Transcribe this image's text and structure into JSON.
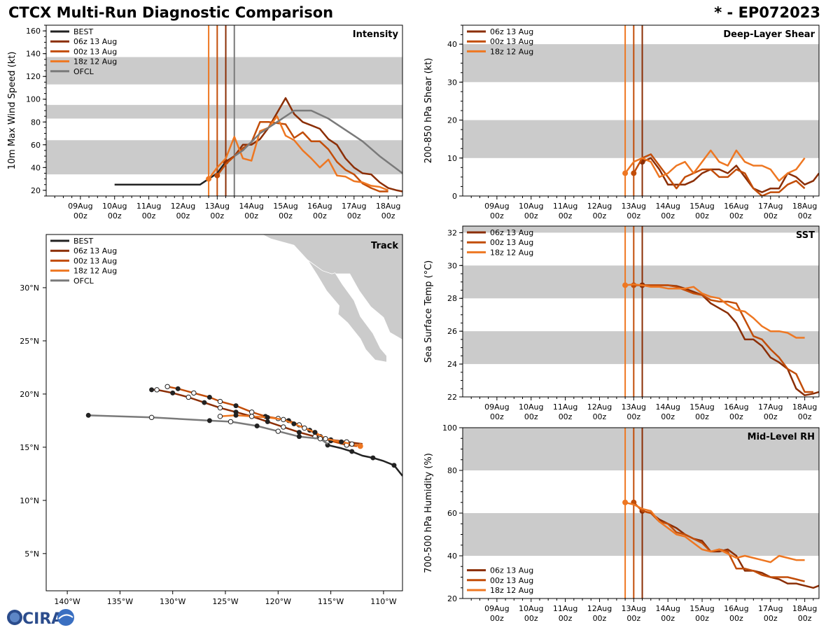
{
  "header": {
    "title": "CTCX Multi-Run Diagnostic Comparison",
    "storm_id": "* - EP072023"
  },
  "colors": {
    "best": "#222222",
    "run06z": "#8B2E05",
    "run00z": "#C24D09",
    "run18z": "#EE7722",
    "ofcl": "#7a7a7a",
    "band": "#cbcbcb",
    "land": "#cbcbcb"
  },
  "time_ticks": {
    "days": [
      "09Aug",
      "10Aug",
      "11Aug",
      "12Aug",
      "13Aug",
      "14Aug",
      "15Aug",
      "16Aug",
      "17Aug",
      "18Aug"
    ],
    "hour": "00z"
  },
  "legend_runs": [
    "06z 13 Aug",
    "00z 13 Aug",
    "18z 12 Aug"
  ],
  "logo": {
    "text": "CIRA"
  },
  "chart_data": [
    {
      "id": "intensity",
      "type": "line",
      "title": "Intensity",
      "ylabel": "10m Max Wind Speed (kt)",
      "xlabel": "",
      "xlim_hours": [
        -24,
        226
      ],
      "ylim": [
        15,
        165
      ],
      "yticks": [
        20,
        40,
        60,
        80,
        100,
        120,
        140,
        160
      ],
      "bands": [
        [
          34,
          64
        ],
        [
          83,
          95
        ],
        [
          113,
          137
        ]
      ],
      "legend": [
        "BEST",
        "06z 13 Aug",
        "00z 13 Aug",
        "18z 12 Aug",
        "OFCL"
      ],
      "init_lines_hours": [
        90,
        96,
        102,
        108
      ],
      "series": [
        {
          "name": "BEST",
          "x_hours": [
            24,
            36,
            48,
            60,
            72,
            84,
            90,
            96,
            102,
            108
          ],
          "values": [
            25,
            25,
            25,
            25,
            25,
            25,
            30,
            35,
            45,
            50
          ]
        },
        {
          "name": "06z 13 Aug",
          "x_hours": [
            102,
            108,
            114,
            120,
            126,
            132,
            138,
            144,
            150,
            156,
            162,
            168,
            174,
            180,
            186,
            192,
            198,
            204,
            210,
            216,
            222,
            226
          ],
          "values": [
            45,
            50,
            60,
            60,
            65,
            75,
            88,
            101,
            87,
            80,
            77,
            74,
            65,
            60,
            48,
            40,
            35,
            34,
            27,
            22,
            20,
            19
          ]
        },
        {
          "name": "00z 13 Aug",
          "x_hours": [
            96,
            102,
            108,
            114,
            120,
            126,
            132,
            138,
            144,
            150,
            156,
            162,
            168,
            174,
            180,
            186,
            192,
            198,
            204,
            210,
            216
          ],
          "values": [
            33,
            43,
            50,
            57,
            62,
            80,
            80,
            79,
            78,
            66,
            71,
            63,
            63,
            56,
            45,
            38,
            34,
            26,
            22,
            19,
            19
          ]
        },
        {
          "name": "18z 12 Aug",
          "x_hours": [
            90,
            96,
            102,
            108,
            114,
            120,
            126,
            132,
            138,
            144,
            150,
            156,
            162,
            168,
            174,
            180,
            186,
            192,
            198,
            204,
            210,
            216
          ],
          "values": [
            30,
            40,
            48,
            67,
            48,
            46,
            72,
            75,
            85,
            68,
            64,
            55,
            48,
            40,
            47,
            33,
            32,
            28,
            27,
            24,
            23,
            20
          ]
        },
        {
          "name": "OFCL",
          "x_hours": [
            108,
            114,
            126,
            138,
            150,
            162,
            174,
            186,
            198,
            210,
            226
          ],
          "values": [
            50,
            55,
            70,
            80,
            90,
            90,
            83,
            73,
            63,
            50,
            35
          ]
        }
      ]
    },
    {
      "id": "shear",
      "type": "line",
      "title": "Deep-Layer Shear",
      "ylabel": "200-850 hPa Shear (kt)",
      "xlim_hours": [
        -24,
        226
      ],
      "ylim": [
        0,
        45
      ],
      "yticks": [
        0,
        10,
        20,
        30,
        40
      ],
      "bands": [
        [
          10,
          20
        ],
        [
          30,
          40
        ]
      ],
      "legend": [
        "06z 13 Aug",
        "00z 13 Aug",
        "18z 12 Aug"
      ],
      "init_lines_hours": [
        90,
        96,
        102
      ],
      "series": [
        {
          "name": "06z 13 Aug",
          "x_hours": [
            102,
            108,
            114,
            120,
            126,
            132,
            138,
            144,
            150,
            156,
            162,
            168,
            174,
            180,
            186,
            192,
            198,
            204,
            210,
            216,
            222,
            226
          ],
          "values": [
            9,
            10,
            7,
            3,
            3,
            3,
            4,
            6,
            7,
            7,
            6,
            8,
            5,
            2,
            1,
            2,
            2,
            6,
            5,
            3,
            4,
            6
          ]
        },
        {
          "name": "00z 13 Aug",
          "x_hours": [
            96,
            102,
            108,
            114,
            120,
            126,
            132,
            138,
            144,
            150,
            156,
            162,
            168,
            174,
            180,
            186,
            192,
            198,
            204,
            210,
            216
          ],
          "values": [
            6,
            10,
            11,
            8,
            5,
            2,
            5,
            6,
            7,
            7,
            5,
            5,
            7,
            6,
            2,
            0,
            1,
            1,
            3,
            4,
            2
          ]
        },
        {
          "name": "18z 12 Aug",
          "x_hours": [
            90,
            96,
            102,
            108,
            114,
            120,
            126,
            132,
            138,
            144,
            150,
            156,
            162,
            168,
            174,
            180,
            186,
            192,
            198,
            204,
            210,
            216
          ],
          "values": [
            6,
            9,
            10,
            9,
            5,
            6,
            8,
            9,
            6,
            9,
            12,
            9,
            8,
            12,
            9,
            8,
            8,
            7,
            4,
            6,
            7,
            10
          ]
        }
      ]
    },
    {
      "id": "sst",
      "type": "line",
      "title": "SST",
      "ylabel": "Sea Surface Temp (°C)",
      "xlim_hours": [
        -24,
        226
      ],
      "ylim": [
        22,
        32.4
      ],
      "yticks": [
        22,
        24,
        26,
        28,
        30,
        32
      ],
      "bands": [
        [
          24,
          26
        ],
        [
          28,
          30
        ],
        [
          32,
          33
        ]
      ],
      "legend": [
        "06z 13 Aug",
        "00z 13 Aug",
        "18z 12 Aug"
      ],
      "init_lines_hours": [
        90,
        96,
        102
      ],
      "series": [
        {
          "name": "06z 13 Aug",
          "x_hours": [
            102,
            108,
            114,
            120,
            126,
            132,
            138,
            144,
            150,
            156,
            162,
            168,
            174,
            180,
            186,
            192,
            198,
            204,
            210,
            216,
            222,
            226
          ],
          "values": [
            28.8,
            28.8,
            28.8,
            28.8,
            28.75,
            28.6,
            28.4,
            28.2,
            27.7,
            27.4,
            27.1,
            26.5,
            25.5,
            25.5,
            25.1,
            24.4,
            24.1,
            23.7,
            22.5,
            22.1,
            22.2,
            22.3
          ]
        },
        {
          "name": "00z 13 Aug",
          "x_hours": [
            96,
            102,
            108,
            114,
            120,
            126,
            132,
            138,
            144,
            150,
            156,
            162,
            168,
            174,
            180,
            186,
            192,
            198,
            204,
            210,
            216,
            222
          ],
          "values": [
            28.8,
            28.8,
            28.8,
            28.8,
            28.8,
            28.7,
            28.5,
            28.3,
            28.2,
            27.9,
            27.8,
            27.8,
            27.7,
            26.7,
            25.7,
            25.5,
            24.9,
            24.4,
            23.7,
            23.4,
            22.3,
            22.3
          ]
        },
        {
          "name": "18z 12 Aug",
          "x_hours": [
            90,
            96,
            102,
            108,
            114,
            120,
            126,
            132,
            138,
            144,
            150,
            156,
            162,
            168,
            174,
            180,
            186,
            192,
            198,
            204,
            210,
            216
          ],
          "values": [
            28.8,
            28.85,
            28.8,
            28.7,
            28.7,
            28.6,
            28.6,
            28.6,
            28.7,
            28.3,
            28.1,
            28.0,
            27.6,
            27.3,
            27.2,
            26.8,
            26.3,
            26.0,
            26.0,
            25.9,
            25.6,
            25.6
          ]
        }
      ]
    },
    {
      "id": "rh",
      "type": "line",
      "title": "Mid-Level RH",
      "ylabel": "700-500 hPa Humidity (%)",
      "xlim_hours": [
        -24,
        226
      ],
      "ylim": [
        20,
        100
      ],
      "yticks": [
        20,
        40,
        60,
        80,
        100
      ],
      "bands": [
        [
          40,
          60
        ],
        [
          80,
          100
        ]
      ],
      "legend": [
        "06z 13 Aug",
        "00z 13 Aug",
        "18z 12 Aug"
      ],
      "init_lines_hours": [
        90,
        96,
        102
      ],
      "series": [
        {
          "name": "06z 13 Aug",
          "x_hours": [
            102,
            108,
            114,
            120,
            126,
            132,
            138,
            144,
            150,
            156,
            162,
            168,
            174,
            180,
            186,
            192,
            198,
            204,
            210,
            216,
            222,
            226
          ],
          "values": [
            61,
            60,
            57,
            55,
            53,
            50,
            48,
            47,
            42,
            42,
            43,
            40,
            33,
            33,
            32,
            30,
            29,
            27,
            27,
            26,
            25,
            26
          ]
        },
        {
          "name": "00z 13 Aug",
          "x_hours": [
            96,
            102,
            108,
            114,
            120,
            126,
            132,
            138,
            144,
            150,
            156,
            162,
            168,
            174,
            180,
            186,
            192,
            198,
            204,
            210,
            216
          ],
          "values": [
            65,
            61,
            60,
            56,
            55,
            51,
            50,
            48,
            46,
            42,
            43,
            42,
            34,
            34,
            33,
            31,
            30,
            30,
            30,
            29,
            28
          ]
        },
        {
          "name": "18z 12 Aug",
          "x_hours": [
            90,
            96,
            102,
            108,
            114,
            120,
            126,
            132,
            138,
            144,
            150,
            156,
            162,
            168,
            174,
            180,
            186,
            192,
            198,
            204,
            210,
            216
          ],
          "values": [
            65,
            64,
            62,
            61,
            56,
            53,
            50,
            49,
            46,
            43,
            42,
            43,
            41,
            39,
            40,
            39,
            38,
            37,
            40,
            39,
            38,
            38
          ]
        }
      ]
    },
    {
      "id": "track",
      "type": "scatter",
      "title": "Track",
      "xlabel": "",
      "ylabel": "",
      "xlim": [
        -142,
        -108.2
      ],
      "ylim": [
        1.5,
        35
      ],
      "xticks": [
        -140,
        -135,
        -130,
        -125,
        -120,
        -115,
        -110
      ],
      "xtick_labels": [
        "140°W",
        "135°W",
        "130°W",
        "125°W",
        "120°W",
        "115°W",
        "110°W"
      ],
      "yticks": [
        5,
        10,
        15,
        20,
        25,
        30
      ],
      "ytick_labels": [
        "5°N",
        "10°N",
        "15°N",
        "20°N",
        "25°N",
        "30°N"
      ],
      "legend": [
        "BEST",
        "06z 13 Aug",
        "00z 13 Aug",
        "18z 12 Aug",
        "OFCL"
      ],
      "series": [
        {
          "name": "BEST",
          "lon": [
            -108.2,
            -109,
            -110,
            -111,
            -112,
            -113,
            -114,
            -115.3,
            -115.5
          ],
          "lat": [
            12.3,
            13.3,
            13.7,
            14.0,
            14.2,
            14.6,
            14.9,
            15.2,
            15.3
          ]
        },
        {
          "name": "06z 13 Aug",
          "lon": [
            -112,
            -113.5,
            -115,
            -116.5,
            -118,
            -119.5,
            -121,
            -122.5,
            -124,
            -125.5,
            -127,
            -128.5,
            -130,
            -131.5,
            -132
          ],
          "lat": [
            15.3,
            15.5,
            15.7,
            16.0,
            16.4,
            16.9,
            17.4,
            17.9,
            18.3,
            18.7,
            19.2,
            19.7,
            20.1,
            20.4,
            20.4
          ]
        },
        {
          "name": "00z 13 Aug",
          "lon": [
            -112.5,
            -113.5,
            -115,
            -116,
            -117,
            -118,
            -119,
            -120,
            -121.2,
            -122.5,
            -124,
            -125.5,
            -126.5,
            -128,
            -129.5,
            -130.5
          ],
          "lat": [
            15.1,
            15.2,
            15.6,
            16.0,
            16.6,
            17.1,
            17.5,
            17.7,
            17.9,
            18.3,
            18.9,
            19.3,
            19.7,
            20.1,
            20.5,
            20.7
          ]
        },
        {
          "name": "18z 12 Aug",
          "lon": [
            -112.2,
            -113,
            -114,
            -115.5,
            -116.5,
            -117.5,
            -118.5,
            -119.5,
            -121,
            -122.5,
            -124,
            -125.5
          ],
          "lat": [
            15.1,
            15.3,
            15.5,
            15.8,
            16.4,
            16.8,
            17.2,
            17.6,
            17.8,
            17.9,
            18.0,
            17.9
          ]
        },
        {
          "name": "OFCL",
          "lon": [
            -115.3,
            -116,
            -118,
            -120,
            -122,
            -124.5,
            -126.5,
            -132,
            -138
          ],
          "lat": [
            15.3,
            15.8,
            16.0,
            16.5,
            17.0,
            17.4,
            17.5,
            17.8,
            18.0
          ]
        }
      ]
    }
  ]
}
